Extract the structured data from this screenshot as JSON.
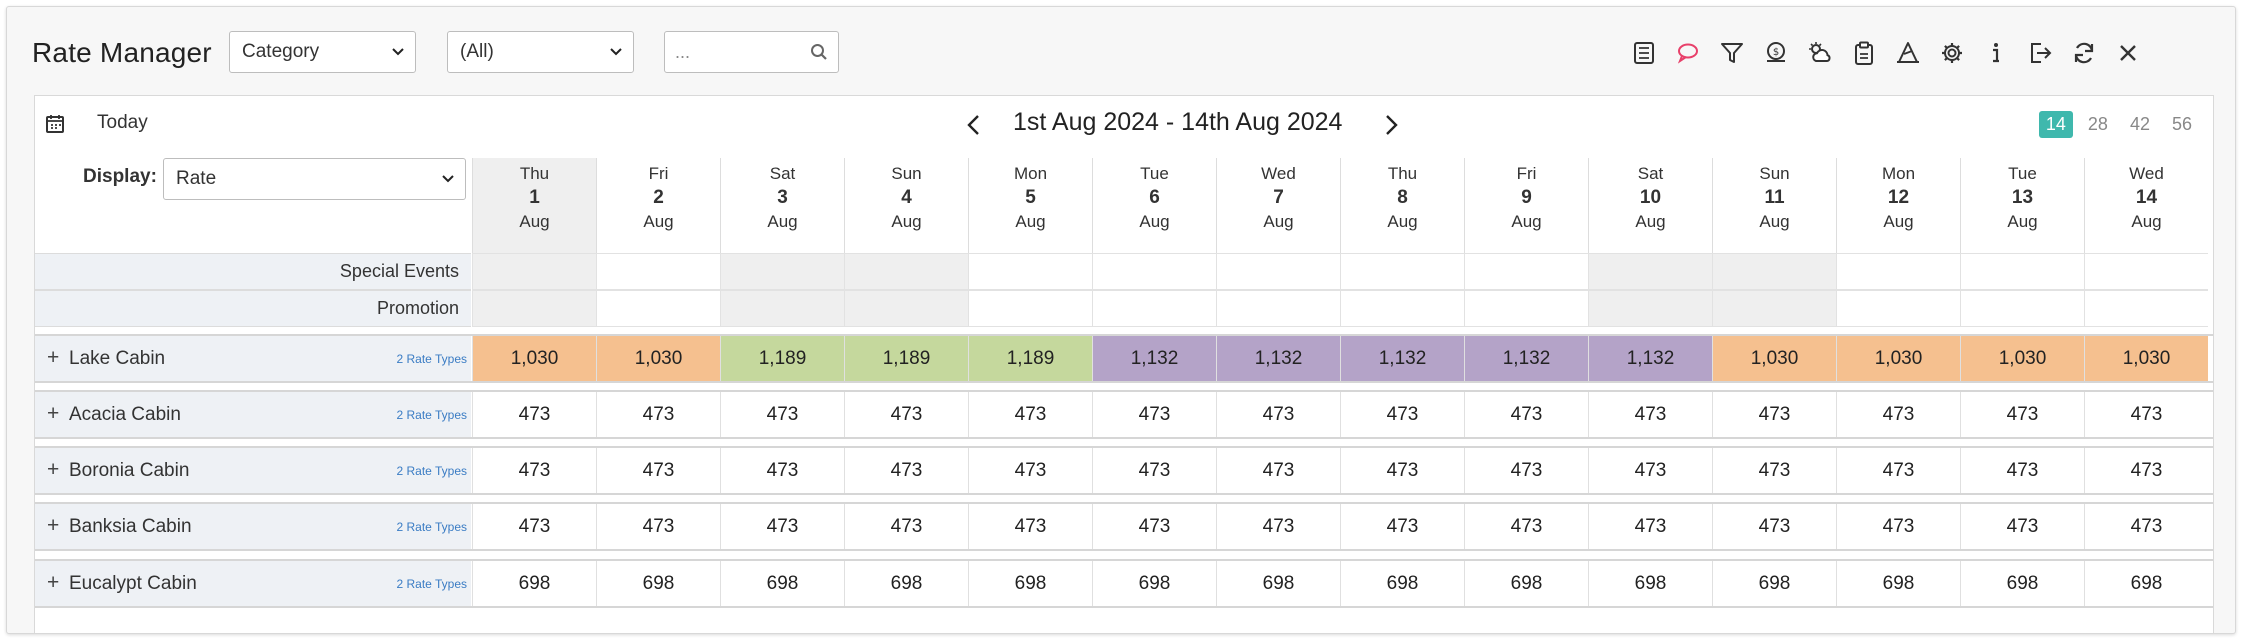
{
  "app": {
    "title": "Rate Manager"
  },
  "filters": {
    "category_select": "Category",
    "scope_select": "(All)",
    "search_placeholder": "..."
  },
  "toolbar": {
    "icons": [
      "list-icon",
      "comment-icon",
      "filter-icon",
      "money-icon",
      "weather-icon",
      "clipboard-icon",
      "wizard-icon",
      "gear-icon",
      "info-icon",
      "export-icon",
      "refresh-icon",
      "close-icon"
    ],
    "comment_color": "#e8406a"
  },
  "calendar": {
    "today_label": "Today",
    "range_label": "1st Aug 2024 - 14th Aug 2024",
    "span_options": [
      "14",
      "28",
      "42",
      "56"
    ],
    "active_span": "14",
    "accent_color": "#3fb8ad"
  },
  "display": {
    "label": "Display:",
    "value": "Rate"
  },
  "days": [
    {
      "dow": "Thu",
      "num": "1",
      "mon": "Aug"
    },
    {
      "dow": "Fri",
      "num": "2",
      "mon": "Aug"
    },
    {
      "dow": "Sat",
      "num": "3",
      "mon": "Aug"
    },
    {
      "dow": "Sun",
      "num": "4",
      "mon": "Aug"
    },
    {
      "dow": "Mon",
      "num": "5",
      "mon": "Aug"
    },
    {
      "dow": "Tue",
      "num": "6",
      "mon": "Aug"
    },
    {
      "dow": "Wed",
      "num": "7",
      "mon": "Aug"
    },
    {
      "dow": "Thu",
      "num": "8",
      "mon": "Aug"
    },
    {
      "dow": "Fri",
      "num": "9",
      "mon": "Aug"
    },
    {
      "dow": "Sat",
      "num": "10",
      "mon": "Aug"
    },
    {
      "dow": "Sun",
      "num": "11",
      "mon": "Aug"
    },
    {
      "dow": "Mon",
      "num": "12",
      "mon": "Aug"
    },
    {
      "dow": "Tue",
      "num": "13",
      "mon": "Aug"
    },
    {
      "dow": "Wed",
      "num": "14",
      "mon": "Aug"
    }
  ],
  "event_rows": [
    "Special Events",
    "Promotion"
  ],
  "room_types": [
    {
      "name": "Lake Cabin",
      "rate_types": "2 Rate Types",
      "rates": [
        "1,030",
        "1,030",
        "1,189",
        "1,189",
        "1,189",
        "1,132",
        "1,132",
        "1,132",
        "1,132",
        "1,132",
        "1,030",
        "1,030",
        "1,030",
        "1,030"
      ],
      "colors": [
        "#f5c08f",
        "#f5c08f",
        "#c5d89d",
        "#c5d89d",
        "#c5d89d",
        "#b4a3c8",
        "#b4a3c8",
        "#b4a3c8",
        "#b4a3c8",
        "#b4a3c8",
        "#f5c08f",
        "#f5c08f",
        "#f5c08f",
        "#f5c08f"
      ]
    },
    {
      "name": "Acacia Cabin",
      "rate_types": "2 Rate Types",
      "rates": [
        "473",
        "473",
        "473",
        "473",
        "473",
        "473",
        "473",
        "473",
        "473",
        "473",
        "473",
        "473",
        "473",
        "473"
      ]
    },
    {
      "name": "Boronia Cabin",
      "rate_types": "2 Rate Types",
      "rates": [
        "473",
        "473",
        "473",
        "473",
        "473",
        "473",
        "473",
        "473",
        "473",
        "473",
        "473",
        "473",
        "473",
        "473"
      ]
    },
    {
      "name": "Banksia Cabin",
      "rate_types": "2 Rate Types",
      "rates": [
        "473",
        "473",
        "473",
        "473",
        "473",
        "473",
        "473",
        "473",
        "473",
        "473",
        "473",
        "473",
        "473",
        "473"
      ]
    },
    {
      "name": "Eucalypt Cabin",
      "rate_types": "2 Rate Types",
      "rates": [
        "698",
        "698",
        "698",
        "698",
        "698",
        "698",
        "698",
        "698",
        "698",
        "698",
        "698",
        "698",
        "698",
        "698"
      ]
    }
  ]
}
